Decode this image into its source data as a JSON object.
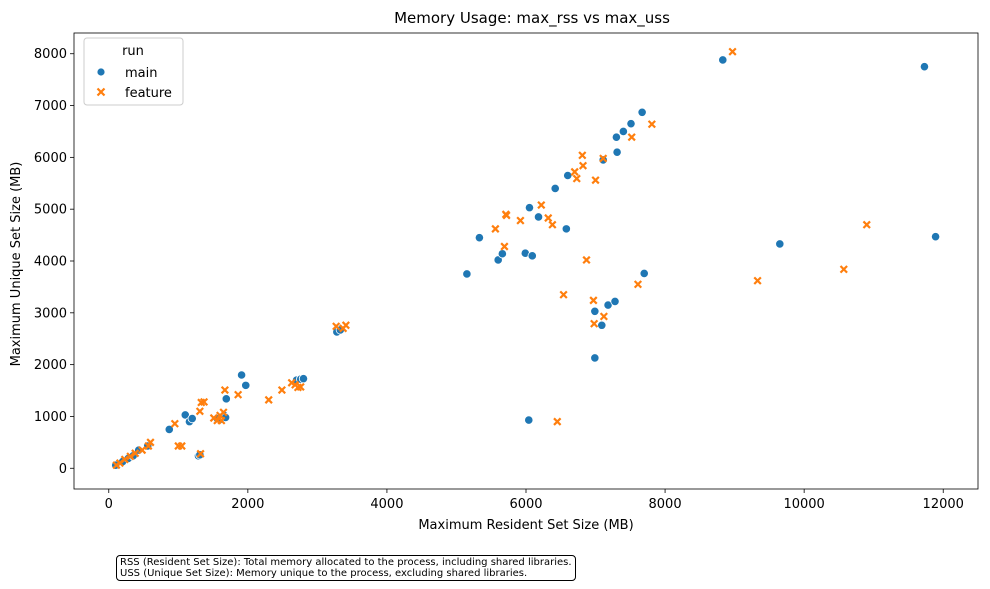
{
  "chart_data": {
    "type": "scatter",
    "title": "Memory Usage: max_rss vs max_uss",
    "xlabel": "Maximum Resident Set Size (MB)",
    "ylabel": "Maximum Unique Set Size (MB)",
    "xlim": [
      -500,
      12500
    ],
    "ylim": [
      -400,
      8400
    ],
    "xticks": [
      0,
      2000,
      4000,
      6000,
      8000,
      10000,
      12000
    ],
    "yticks": [
      0,
      1000,
      2000,
      3000,
      4000,
      5000,
      6000,
      7000,
      8000
    ],
    "grid": false,
    "legend": {
      "title": "run",
      "position": "top-left"
    },
    "colors": {
      "main": "#1f77b4",
      "feature": "#ff7f0e"
    },
    "series": [
      {
        "name": "main",
        "marker": "circle",
        "points": [
          [
            100,
            60
          ],
          [
            200,
            130
          ],
          [
            280,
            190
          ],
          [
            350,
            240
          ],
          [
            430,
            350
          ],
          [
            560,
            430
          ],
          [
            870,
            750
          ],
          [
            1100,
            1030
          ],
          [
            1160,
            900
          ],
          [
            1200,
            960
          ],
          [
            1290,
            240
          ],
          [
            1310,
            260
          ],
          [
            1560,
            960
          ],
          [
            1620,
            950
          ],
          [
            1660,
            1020
          ],
          [
            1680,
            980
          ],
          [
            1690,
            1340
          ],
          [
            1910,
            1800
          ],
          [
            1970,
            1600
          ],
          [
            2700,
            1700
          ],
          [
            2760,
            1720
          ],
          [
            2800,
            1730
          ],
          [
            3280,
            2630
          ],
          [
            3330,
            2670
          ],
          [
            5150,
            3750
          ],
          [
            5330,
            4450
          ],
          [
            5600,
            4020
          ],
          [
            5660,
            4140
          ],
          [
            5990,
            4150
          ],
          [
            6040,
            930
          ],
          [
            6050,
            5030
          ],
          [
            6090,
            4100
          ],
          [
            6180,
            4850
          ],
          [
            6420,
            5400
          ],
          [
            6580,
            4620
          ],
          [
            6600,
            5650
          ],
          [
            6990,
            3030
          ],
          [
            6990,
            2130
          ],
          [
            7090,
            2760
          ],
          [
            7110,
            5950
          ],
          [
            7180,
            3150
          ],
          [
            7280,
            3220
          ],
          [
            7300,
            6390
          ],
          [
            7310,
            6100
          ],
          [
            7400,
            6500
          ],
          [
            7510,
            6650
          ],
          [
            7670,
            6870
          ],
          [
            7700,
            3760
          ],
          [
            8830,
            7880
          ],
          [
            9650,
            4330
          ],
          [
            11730,
            7750
          ],
          [
            11890,
            4470
          ]
        ]
      },
      {
        "name": "feature",
        "marker": "x",
        "points": [
          [
            110,
            60
          ],
          [
            160,
            100
          ],
          [
            230,
            170
          ],
          [
            310,
            230
          ],
          [
            380,
            290
          ],
          [
            480,
            350
          ],
          [
            570,
            430
          ],
          [
            600,
            500
          ],
          [
            950,
            860
          ],
          [
            1000,
            430
          ],
          [
            1050,
            430
          ],
          [
            1310,
            1100
          ],
          [
            1320,
            280
          ],
          [
            1330,
            1270
          ],
          [
            1370,
            1280
          ],
          [
            1510,
            970
          ],
          [
            1560,
            920
          ],
          [
            1600,
            1020
          ],
          [
            1620,
            920
          ],
          [
            1650,
            1080
          ],
          [
            1670,
            1510
          ],
          [
            1860,
            1420
          ],
          [
            2300,
            1320
          ],
          [
            2490,
            1510
          ],
          [
            2630,
            1650
          ],
          [
            2680,
            1610
          ],
          [
            2720,
            1560
          ],
          [
            2760,
            1570
          ],
          [
            3270,
            2740
          ],
          [
            3370,
            2700
          ],
          [
            3410,
            2760
          ],
          [
            5560,
            4620
          ],
          [
            5690,
            4280
          ],
          [
            5710,
            4900
          ],
          [
            5720,
            4880
          ],
          [
            5920,
            4780
          ],
          [
            6220,
            5080
          ],
          [
            6320,
            4830
          ],
          [
            6380,
            4700
          ],
          [
            6450,
            900
          ],
          [
            6540,
            3350
          ],
          [
            6700,
            5720
          ],
          [
            6730,
            5590
          ],
          [
            6810,
            6040
          ],
          [
            6820,
            5840
          ],
          [
            6870,
            4020
          ],
          [
            6970,
            3240
          ],
          [
            6980,
            2790
          ],
          [
            7000,
            5560
          ],
          [
            7120,
            2930
          ],
          [
            7110,
            5980
          ],
          [
            7520,
            6390
          ],
          [
            7610,
            3550
          ],
          [
            7810,
            6640
          ],
          [
            8970,
            8040
          ],
          [
            9330,
            3620
          ],
          [
            10570,
            3840
          ],
          [
            10900,
            4700
          ]
        ]
      }
    ]
  },
  "footnote": {
    "line1": "RSS (Resident Set Size): Total memory allocated to the process, including shared libraries.",
    "line2": "USS (Unique Set Size): Memory unique to the process, excluding shared libraries."
  }
}
